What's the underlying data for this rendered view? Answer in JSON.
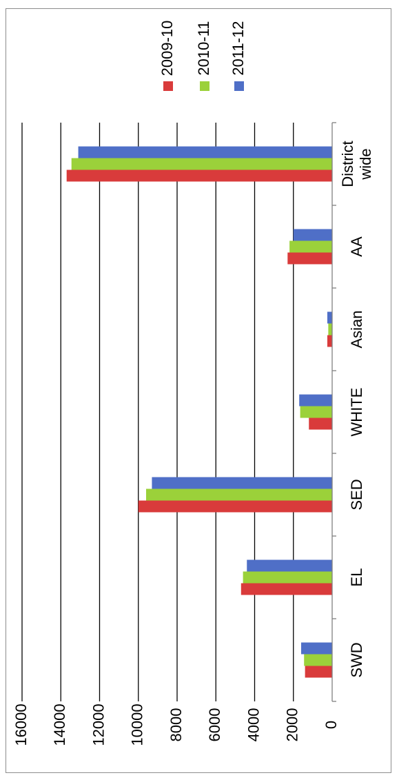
{
  "chart_data": {
    "type": "bar",
    "orientation": "vertical, page rotated 90° clockwise",
    "categories": [
      "District wide",
      "AA",
      "Asian",
      "WHITE",
      "SED",
      "EL",
      "SWD"
    ],
    "category_lines": [
      [
        "District",
        "wide"
      ],
      [
        "AA"
      ],
      [
        "Asian"
      ],
      [
        "WHITE"
      ],
      [
        "SED"
      ],
      [
        "EL"
      ],
      [
        "SWD"
      ]
    ],
    "series": [
      {
        "name": "2009-10",
        "color": "#d93b3b",
        "values": [
          13700,
          2300,
          250,
          1200,
          10000,
          4700,
          1400
        ]
      },
      {
        "name": "2010-11",
        "color": "#9bd13a",
        "values": [
          13450,
          2200,
          200,
          1650,
          9600,
          4600,
          1450
        ]
      },
      {
        "name": "2011-12",
        "color": "#4f6fc7",
        "values": [
          13100,
          2000,
          250,
          1700,
          9300,
          4400,
          1600
        ]
      }
    ],
    "ylim": [
      0,
      16000
    ],
    "yticks": [
      "0",
      "2000",
      "4000",
      "6000",
      "8000",
      "10000",
      "12000",
      "14000",
      "16000"
    ],
    "grid": true,
    "legend_position": "top"
  }
}
